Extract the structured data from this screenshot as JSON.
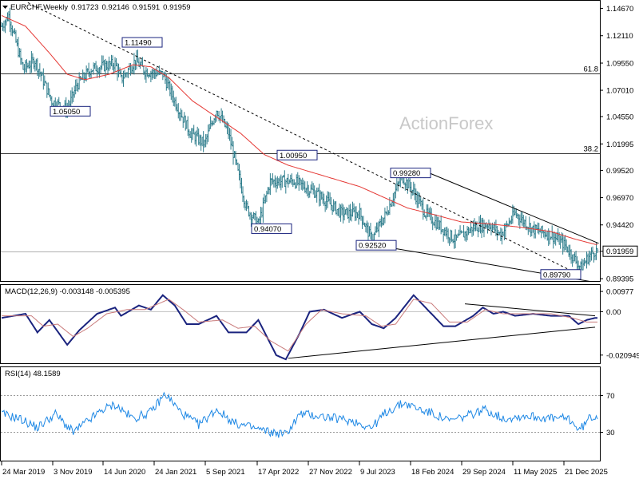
{
  "chart_data": [
    {
      "type": "candlestick",
      "title": "EURCHF,Weekly",
      "ohlc": {
        "open": "0.91723",
        "high": "0.92146",
        "low": "0.91591",
        "close": "0.91959"
      },
      "last_price_label": "0.91959",
      "watermark": "ActionForex",
      "ylim": [
        0.8925,
        1.153
      ],
      "y_ticks": [
        "1.14670",
        "1.12110",
        "1.09550",
        "1.07010",
        "1.04550",
        "1.01995",
        "0.99520",
        "0.96970",
        "0.94420",
        "0.91959",
        "0.89395"
      ],
      "x_ticks": [
        "24 Mar 2019",
        "3 Nov 2019",
        "14 Jun 2020",
        "24 Jan 2021",
        "5 Sep 2021",
        "17 Apr 2022",
        "27 Nov 2022",
        "9 Jul 2023",
        "18 Feb 2024",
        "29 Sep 2024",
        "11 May 2025",
        "21 Dec 2025"
      ],
      "horizontal_levels": [
        {
          "label": "61.8",
          "value": 1.086
        },
        {
          "label": "38.2",
          "value": 1.011
        },
        {
          "label": "",
          "value": 0.9196
        }
      ],
      "annotations": [
        {
          "text": "1.11490",
          "value": 1.1149
        },
        {
          "text": "1.05050",
          "value": 1.0505
        },
        {
          "text": "1.00950",
          "value": 1.0095
        },
        {
          "text": "0.94070",
          "value": 0.9407
        },
        {
          "text": "0.99280",
          "value": 0.9928
        },
        {
          "text": "0.92520",
          "value": 0.9252
        },
        {
          "text": "0.89790",
          "value": 0.8979
        }
      ],
      "series": [
        {
          "name": "",
          "color": "#2e7d8c",
          "role": "weekly-bars",
          "anchors": [
            [
              0,
              1.13
            ],
            [
              6,
              1.14
            ],
            [
              18,
              1.09
            ],
            [
              28,
              1.098
            ],
            [
              42,
              1.06
            ],
            [
              55,
              1.052
            ],
            [
              63,
              1.075
            ],
            [
              75,
              1.09
            ],
            [
              95,
              1.095
            ],
            [
              100,
              1.08
            ],
            [
              112,
              1.098
            ],
            [
              120,
              1.088
            ],
            [
              135,
              1.085
            ],
            [
              145,
              1.06
            ],
            [
              158,
              1.03
            ],
            [
              170,
              1.02
            ],
            [
              180,
              1.052
            ],
            [
              190,
              1.03
            ],
            [
              205,
              0.96
            ],
            [
              215,
              0.945
            ],
            [
              225,
              0.985
            ],
            [
              245,
              0.985
            ],
            [
              262,
              0.975
            ],
            [
              285,
              0.955
            ],
            [
              300,
              0.955
            ],
            [
              310,
              0.93
            ],
            [
              322,
              0.955
            ],
            [
              335,
              0.99
            ],
            [
              345,
              0.975
            ],
            [
              355,
              0.955
            ],
            [
              370,
              0.94
            ],
            [
              380,
              0.93
            ],
            [
              395,
              0.942
            ],
            [
              408,
              0.945
            ],
            [
              418,
              0.935
            ],
            [
              430,
              0.955
            ],
            [
              445,
              0.94
            ],
            [
              460,
              0.935
            ],
            [
              472,
              0.925
            ],
            [
              485,
              0.904
            ],
            [
              492,
              0.915
            ],
            [
              497,
              0.92
            ]
          ]
        },
        {
          "name": "",
          "color": "#e53935",
          "role": "moving-average",
          "anchors": [
            [
              0,
              1.14
            ],
            [
              20,
              1.13
            ],
            [
              40,
              1.105
            ],
            [
              55,
              1.085
            ],
            [
              70,
              1.08
            ],
            [
              90,
              1.085
            ],
            [
              110,
              1.094
            ],
            [
              125,
              1.092
            ],
            [
              140,
              1.082
            ],
            [
              160,
              1.06
            ],
            [
              180,
              1.045
            ],
            [
              200,
              1.03
            ],
            [
              220,
              1.01
            ],
            [
              240,
              1.0
            ],
            [
              270,
              0.99
            ],
            [
              300,
              0.98
            ],
            [
              320,
              0.97
            ],
            [
              340,
              0.96
            ],
            [
              365,
              0.953
            ],
            [
              385,
              0.947
            ],
            [
              410,
              0.945
            ],
            [
              435,
              0.942
            ],
            [
              460,
              0.938
            ],
            [
              480,
              0.931
            ],
            [
              497,
              0.926
            ]
          ]
        }
      ],
      "trendlines": [
        {
          "from": [
            22,
            1.152
          ],
          "to": [
            485,
            0.897
          ],
          "style": "dashed"
        },
        {
          "from": [
            358,
            0.9928
          ],
          "to": [
            500,
            0.927
          ],
          "style": "solid"
        },
        {
          "from": [
            325,
            0.923
          ],
          "to": [
            500,
            0.89
          ],
          "style": "solid"
        }
      ]
    },
    {
      "type": "line",
      "title": "MACD(12,26,9) -0.003148 -0.005395",
      "ylim": [
        -0.0245,
        0.0125
      ],
      "y_ticks": [
        "0.00977",
        "0.00",
        "-0.020949"
      ],
      "series": [
        {
          "name": "MACD",
          "color": "#1a237e",
          "anchors": [
            [
              0,
              -0.003
            ],
            [
              20,
              -0.001
            ],
            [
              30,
              -0.01
            ],
            [
              40,
              -0.004
            ],
            [
              55,
              -0.016
            ],
            [
              65,
              -0.009
            ],
            [
              80,
              -0.001
            ],
            [
              95,
              0.002
            ],
            [
              100,
              -0.002
            ],
            [
              115,
              0.003
            ],
            [
              125,
              0.001
            ],
            [
              135,
              0.008
            ],
            [
              145,
              0.003
            ],
            [
              155,
              -0.006
            ],
            [
              165,
              -0.006
            ],
            [
              180,
              -0.002
            ],
            [
              190,
              -0.01
            ],
            [
              205,
              -0.01
            ],
            [
              215,
              -0.004
            ],
            [
              230,
              -0.021
            ],
            [
              238,
              -0.023
            ],
            [
              250,
              -0.01
            ],
            [
              258,
              0.0
            ],
            [
              270,
              0.001
            ],
            [
              285,
              -0.003
            ],
            [
              300,
              0.0
            ],
            [
              310,
              -0.006
            ],
            [
              320,
              -0.008
            ],
            [
              330,
              -0.003
            ],
            [
              345,
              0.008
            ],
            [
              355,
              0.002
            ],
            [
              370,
              -0.007
            ],
            [
              380,
              -0.007
            ],
            [
              395,
              -0.002
            ],
            [
              403,
              0.002
            ],
            [
              412,
              -0.001
            ],
            [
              420,
              0.0
            ],
            [
              430,
              -0.002
            ],
            [
              445,
              -0.001
            ],
            [
              460,
              -0.002
            ],
            [
              475,
              -0.002
            ],
            [
              483,
              -0.006
            ],
            [
              490,
              -0.004
            ],
            [
              497,
              -0.003
            ]
          ]
        },
        {
          "name": "Signal",
          "color": "#c97b7b",
          "anchors": [
            [
              0,
              -0.002
            ],
            [
              25,
              -0.002
            ],
            [
              35,
              -0.007
            ],
            [
              47,
              -0.006
            ],
            [
              60,
              -0.012
            ],
            [
              72,
              -0.008
            ],
            [
              88,
              -0.001
            ],
            [
              105,
              0.001
            ],
            [
              120,
              0.001
            ],
            [
              140,
              0.006
            ],
            [
              152,
              0.001
            ],
            [
              165,
              -0.005
            ],
            [
              185,
              -0.004
            ],
            [
              198,
              -0.008
            ],
            [
              212,
              -0.007
            ],
            [
              225,
              -0.014
            ],
            [
              240,
              -0.019
            ],
            [
              255,
              -0.006
            ],
            [
              268,
              0.001
            ],
            [
              285,
              -0.001
            ],
            [
              305,
              -0.002
            ],
            [
              318,
              -0.007
            ],
            [
              330,
              -0.006
            ],
            [
              345,
              0.006
            ],
            [
              360,
              0.004
            ],
            [
              375,
              -0.005
            ],
            [
              390,
              -0.005
            ],
            [
              405,
              0.001
            ],
            [
              420,
              -0.001
            ],
            [
              440,
              -0.001
            ],
            [
              460,
              -0.001
            ],
            [
              478,
              -0.003
            ],
            [
              490,
              -0.005
            ],
            [
              497,
              -0.005
            ]
          ]
        }
      ],
      "trendlines": [
        {
          "from": [
            388,
            0.0038
          ],
          "to": [
            497,
            -0.002
          ],
          "style": "solid"
        },
        {
          "from": [
            240,
            -0.0225
          ],
          "to": [
            497,
            -0.0075
          ],
          "style": "solid"
        }
      ]
    },
    {
      "type": "line",
      "title": "RSI(14) 48.1589",
      "ylim": [
        0,
        100
      ],
      "y_ticks": [
        "70",
        "30"
      ],
      "reference_levels": [
        70,
        30
      ],
      "series": [
        {
          "name": "RSI",
          "color": "#1e88e5",
          "anchors": [
            [
              0,
              50
            ],
            [
              15,
              45
            ],
            [
              30,
              35
            ],
            [
              45,
              50
            ],
            [
              60,
              30
            ],
            [
              75,
              45
            ],
            [
              85,
              55
            ],
            [
              95,
              60
            ],
            [
              110,
              45
            ],
            [
              125,
              52
            ],
            [
              137,
              72
            ],
            [
              150,
              52
            ],
            [
              165,
              38
            ],
            [
              180,
              55
            ],
            [
              195,
              40
            ],
            [
              210,
              35
            ],
            [
              225,
              30
            ],
            [
              238,
              28
            ],
            [
              250,
              50
            ],
            [
              265,
              48
            ],
            [
              280,
              45
            ],
            [
              295,
              42
            ],
            [
              310,
              35
            ],
            [
              322,
              52
            ],
            [
              337,
              62
            ],
            [
              350,
              55
            ],
            [
              362,
              50
            ],
            [
              375,
              42
            ],
            [
              390,
              48
            ],
            [
              405,
              55
            ],
            [
              420,
              45
            ],
            [
              440,
              48
            ],
            [
              460,
              45
            ],
            [
              475,
              45
            ],
            [
              484,
              32
            ],
            [
              492,
              45
            ],
            [
              497,
              48
            ]
          ]
        }
      ]
    }
  ]
}
